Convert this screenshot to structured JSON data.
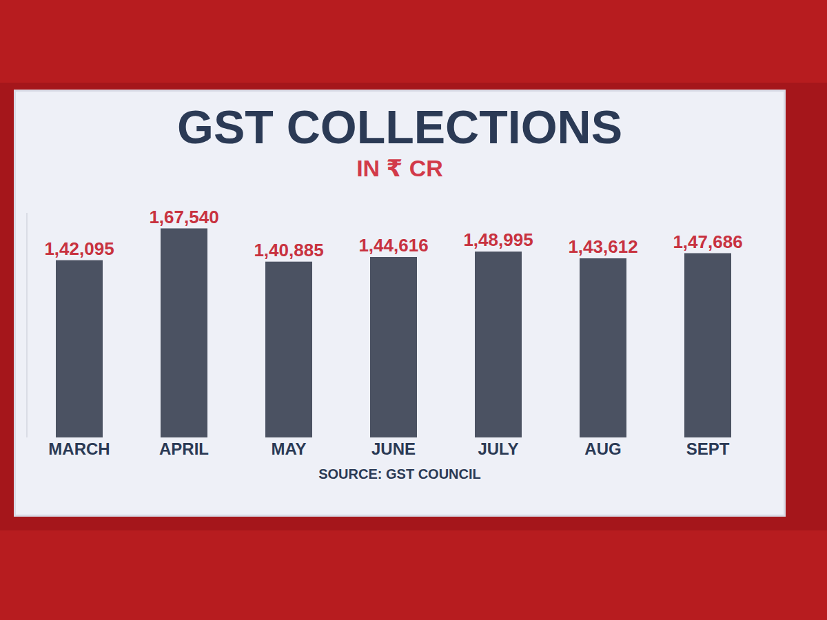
{
  "chart_data": {
    "type": "bar",
    "title": "GST COLLECTIONS",
    "subtitle": "IN ₹ CR",
    "annotations": [
      "SOURCE: GST COUNCIL"
    ],
    "categories": [
      "MARCH",
      "APRIL",
      "MAY",
      "JUNE",
      "JULY",
      "AUG",
      "SEPT"
    ],
    "values": [
      142095,
      167540,
      140885,
      144616,
      148995,
      143612,
      147686
    ],
    "value_labels": [
      "1,42,095",
      "1,67,540",
      "1,40,885",
      "1,44,616",
      "1,48,995",
      "1,43,612",
      "1,47,686"
    ],
    "color": "#4b5262",
    "ylim": [
      0,
      180000
    ],
    "grid": false,
    "data_labels": true,
    "tick_labels": "x"
  }
}
